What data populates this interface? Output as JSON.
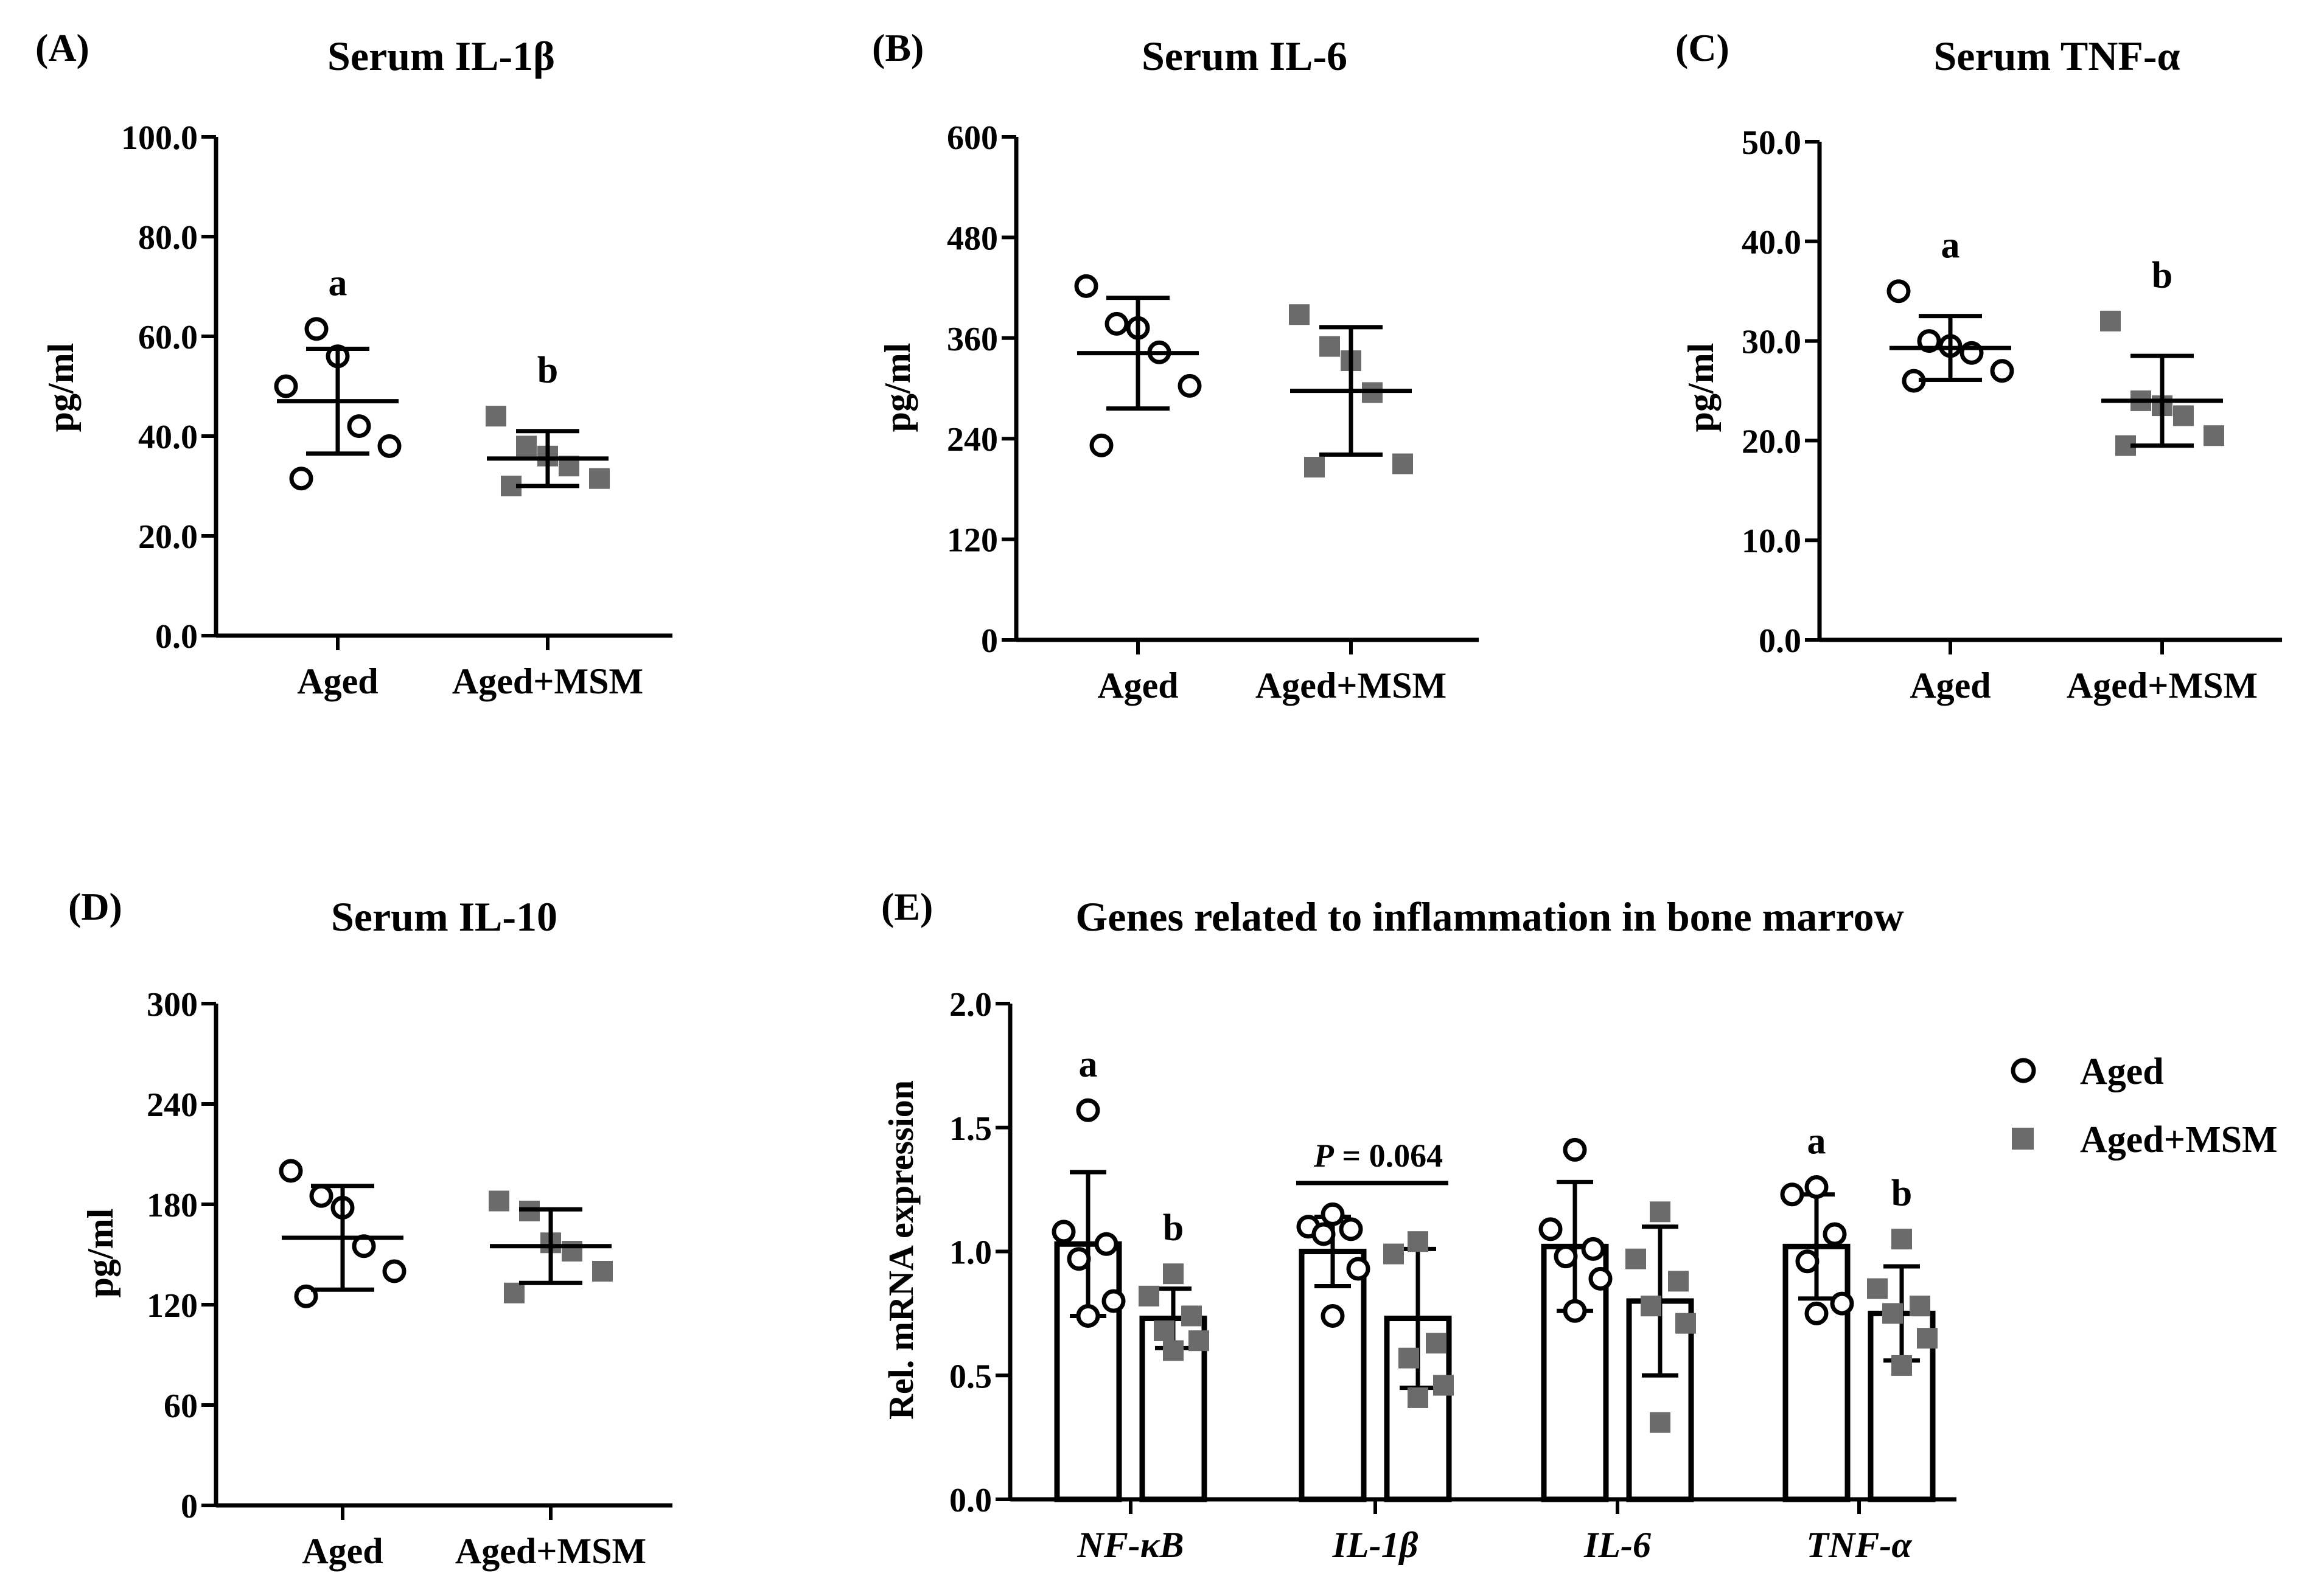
{
  "colors": {
    "aged": "#000000",
    "msm": "#6b6b6b",
    "axis": "#000000"
  },
  "legend": {
    "aged_label": "Aged",
    "msm_label": "Aged+MSM"
  },
  "panels": [
    {
      "id": "A",
      "letter": "(A)",
      "title": "Serum IL-1β",
      "ylabel": "pg/ml",
      "ticks": [
        "0.0",
        "20.0",
        "40.0",
        "60.0",
        "80.0",
        "100.0"
      ]
    },
    {
      "id": "B",
      "letter": "(B)",
      "title": "Serum IL-6",
      "ylabel": "pg/ml",
      "ticks": [
        "0",
        "120",
        "240",
        "360",
        "480",
        "600"
      ]
    },
    {
      "id": "C",
      "letter": "(C)",
      "title": "Serum TNF-α",
      "ylabel": "pg/ml",
      "ticks": [
        "0.0",
        "10.0",
        "20.0",
        "30.0",
        "40.0",
        "50.0"
      ]
    },
    {
      "id": "D",
      "letter": "(D)",
      "title": "Serum IL-10",
      "ylabel": "pg/ml",
      "ticks": [
        "0",
        "60",
        "120",
        "180",
        "240",
        "300"
      ]
    },
    {
      "id": "E",
      "letter": "(E)",
      "title": "Genes related to inflammation in bone marrow",
      "ylabel": "Rel. mRNA expression",
      "ticks": [
        "0.0",
        "0.5",
        "1.0",
        "1.5",
        "2.0"
      ],
      "p_label": "P",
      "p_value": " = 0.064"
    }
  ],
  "chart_data": [
    {
      "type": "scatter",
      "panel": "A",
      "title": "Serum IL-1β",
      "ylabel": "pg/ml",
      "ylim": [
        0,
        100
      ],
      "categories": [
        "Aged",
        "Aged+MSM"
      ],
      "series": [
        {
          "name": "Aged",
          "points": [
            50,
            61.5,
            56,
            42,
            38,
            31.5
          ],
          "mean": 47,
          "sd": 10.5,
          "letter": "a"
        },
        {
          "name": "Aged+MSM",
          "points": [
            44,
            38,
            36,
            34,
            31.5,
            30
          ],
          "mean": 35.5,
          "sd": 5.5,
          "letter": "b"
        }
      ]
    },
    {
      "type": "scatter",
      "panel": "B",
      "title": "Serum IL-6",
      "ylabel": "pg/ml",
      "ylim": [
        0,
        600
      ],
      "categories": [
        "Aged",
        "Aged+MSM"
      ],
      "series": [
        {
          "name": "Aged",
          "points": [
            422,
            377,
            372,
            343,
            303,
            232
          ],
          "mean": 342,
          "sd": 66,
          "letter": ""
        },
        {
          "name": "Aged+MSM",
          "points": [
            388,
            350,
            333,
            295,
            210,
            206
          ],
          "mean": 297,
          "sd": 76,
          "letter": ""
        }
      ]
    },
    {
      "type": "scatter",
      "panel": "C",
      "title": "Serum TNF-α",
      "ylabel": "pg/ml",
      "ylim": [
        0,
        50
      ],
      "categories": [
        "Aged",
        "Aged+MSM"
      ],
      "series": [
        {
          "name": "Aged",
          "points": [
            35,
            30,
            29.5,
            28.8,
            27,
            26
          ],
          "mean": 29.3,
          "sd": 3.2,
          "letter": "a"
        },
        {
          "name": "Aged+MSM",
          "points": [
            32,
            24,
            23.5,
            22.5,
            20.5,
            19.5
          ],
          "mean": 24,
          "sd": 4.5,
          "letter": "b"
        }
      ]
    },
    {
      "type": "scatter",
      "panel": "D",
      "title": "Serum IL-10",
      "ylabel": "pg/ml",
      "ylim": [
        0,
        300
      ],
      "categories": [
        "Aged",
        "Aged+MSM"
      ],
      "series": [
        {
          "name": "Aged",
          "points": [
            200,
            185,
            178,
            155,
            140,
            125
          ],
          "mean": 160,
          "sd": 31,
          "letter": ""
        },
        {
          "name": "Aged+MSM",
          "points": [
            182,
            176,
            157,
            152,
            140,
            127
          ],
          "mean": 155,
          "sd": 22,
          "letter": ""
        }
      ]
    },
    {
      "type": "bar",
      "panel": "E",
      "title": "Genes related to inflammation in bone marrow",
      "ylabel": "Rel. mRNA expression",
      "ylim": [
        0,
        2.0
      ],
      "categories": [
        "NF-κB",
        "IL-1β",
        "IL-6",
        "TNF-α"
      ],
      "series": [
        {
          "name": "Aged",
          "values": [
            1.03,
            1.0,
            1.02,
            1.02
          ],
          "sd": [
            0.29,
            0.14,
            0.26,
            0.21
          ],
          "points": [
            [
              1.57,
              1.08,
              1.03,
              0.97,
              0.8,
              0.74
            ],
            [
              1.15,
              1.1,
              1.09,
              1.07,
              0.93,
              0.74
            ],
            [
              1.41,
              1.09,
              1.01,
              0.98,
              0.89,
              0.76
            ],
            [
              1.26,
              1.23,
              1.07,
              0.96,
              0.79,
              0.75
            ]
          ],
          "letters": [
            "a",
            "",
            "",
            "a"
          ]
        },
        {
          "name": "Aged+MSM",
          "values": [
            0.73,
            0.73,
            0.8,
            0.75
          ],
          "sd": [
            0.12,
            0.28,
            0.3,
            0.19
          ],
          "points": [
            [
              0.91,
              0.82,
              0.74,
              0.68,
              0.64,
              0.6
            ],
            [
              1.04,
              0.99,
              0.63,
              0.57,
              0.46,
              0.41
            ],
            [
              1.16,
              0.97,
              0.88,
              0.78,
              0.71,
              0.31
            ],
            [
              1.05,
              0.85,
              0.78,
              0.75,
              0.65,
              0.54
            ]
          ],
          "letters": [
            "b",
            "",
            "",
            "b"
          ]
        }
      ],
      "annotations": [
        {
          "text": "P = 0.064",
          "between": "IL-1β"
        }
      ],
      "legend": "right"
    }
  ]
}
